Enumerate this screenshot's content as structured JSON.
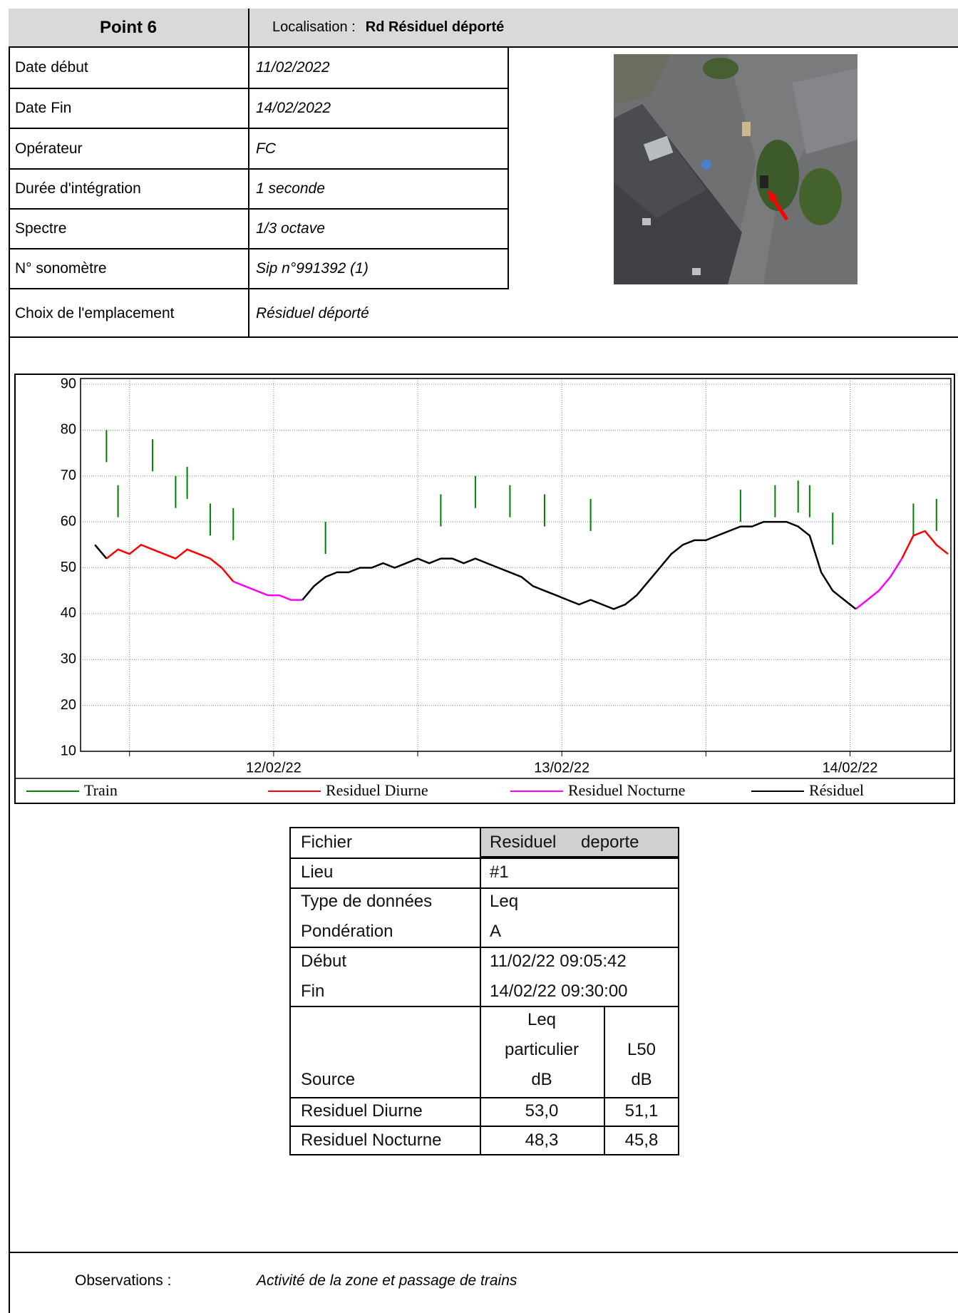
{
  "header": {
    "point": "Point 6",
    "location_label": "Localisation :",
    "location": "Rd Résiduel déporté"
  },
  "info": {
    "rows": [
      [
        "Date début",
        "11/02/2022"
      ],
      [
        "Date Fin",
        "14/02/2022"
      ],
      [
        "Opérateur",
        "FC"
      ],
      [
        "Durée d'intégration",
        "1 seconde"
      ],
      [
        "Spectre",
        "1/3 octave"
      ],
      [
        "N° sonomètre",
        "Sip n°991392 (1)"
      ],
      [
        "Choix de l'emplacement",
        "Résiduel déporté"
      ]
    ]
  },
  "chart_data": {
    "type": "line",
    "xlim": [
      0.33,
      3.35
    ],
    "xticks": [
      {
        "value": 1,
        "label": "12/02/22"
      },
      {
        "value": 2,
        "label": "13/02/22"
      },
      {
        "value": 3,
        "label": "14/02/22"
      }
    ],
    "xminor": [
      0.5,
      1.5,
      2.5
    ],
    "ylim": [
      10,
      90
    ],
    "yticks": [
      10,
      20,
      30,
      40,
      50,
      60,
      70,
      80,
      90
    ],
    "grid": true,
    "series": [
      {
        "name": "Train",
        "color": "#008000",
        "style": "spike",
        "x": [
          0.42,
          0.46,
          0.58,
          0.66,
          0.7,
          0.78,
          0.86,
          1.18,
          1.58,
          1.7,
          1.82,
          1.94,
          2.1,
          2.62,
          2.74,
          2.82,
          2.86,
          2.94,
          3.22,
          3.3
        ],
        "values": [
          80,
          68,
          78,
          70,
          72,
          64,
          63,
          60,
          66,
          70,
          68,
          66,
          65,
          67,
          68,
          69,
          68,
          62,
          64,
          65
        ]
      },
      {
        "name": "Residuel Diurne",
        "color": "#ff0000",
        "style": "line",
        "x": [
          0.42,
          0.46,
          0.5,
          0.54,
          0.58,
          0.62,
          0.66,
          0.7,
          0.74,
          0.78,
          0.82,
          0.86,
          2.0,
          3.18,
          3.22,
          3.26,
          3.3,
          3.34
        ],
        "values": [
          52,
          54,
          53,
          55,
          54,
          53,
          52,
          54,
          53,
          52,
          50,
          47,
          null,
          52,
          57,
          58,
          55,
          53
        ]
      },
      {
        "name": "Residuel Nocturne",
        "color": "#ff00ff",
        "style": "line",
        "x": [
          0.86,
          0.9,
          0.94,
          0.98,
          1.02,
          1.06,
          1.1,
          2.0,
          3.02,
          3.06,
          3.1,
          3.14,
          3.18
        ],
        "values": [
          47,
          46,
          45,
          44,
          44,
          43,
          43,
          null,
          41,
          43,
          45,
          48,
          52
        ]
      },
      {
        "name": "Résiduel",
        "color": "#000000",
        "style": "line",
        "x": [
          0.38,
          0.42,
          0.8,
          1.1,
          1.14,
          1.18,
          1.22,
          1.26,
          1.3,
          1.34,
          1.38,
          1.42,
          1.46,
          1.5,
          1.54,
          1.58,
          1.62,
          1.66,
          1.7,
          1.74,
          1.78,
          1.82,
          1.86,
          1.9,
          1.94,
          1.98,
          2.02,
          2.06,
          2.1,
          2.14,
          2.18,
          2.22,
          2.26,
          2.3,
          2.34,
          2.38,
          2.42,
          2.46,
          2.5,
          2.54,
          2.58,
          2.62,
          2.66,
          2.7,
          2.74,
          2.78,
          2.82,
          2.86,
          2.9,
          2.94,
          2.98,
          3.02
        ],
        "values": [
          55,
          52,
          null,
          43,
          46,
          48,
          49,
          49,
          50,
          50,
          51,
          50,
          51,
          52,
          51,
          52,
          52,
          51,
          52,
          51,
          50,
          49,
          48,
          46,
          45,
          44,
          43,
          42,
          43,
          42,
          41,
          42,
          44,
          47,
          50,
          53,
          55,
          56,
          56,
          57,
          58,
          59,
          59,
          60,
          60,
          60,
          59,
          57,
          49,
          45,
          43,
          41
        ]
      }
    ]
  },
  "summary_table": {
    "rows": [
      [
        "Fichier",
        "Residuel deporte"
      ],
      [
        "Lieu",
        "#1"
      ],
      [
        "Type de données",
        "Leq"
      ],
      [
        "Pondération",
        "A"
      ],
      [
        "Début",
        "11/02/22 09:05:42"
      ],
      [
        "Fin",
        "14/02/22 09:30:00"
      ]
    ],
    "header": {
      "source": "Source",
      "leq": [
        "Leq",
        "particulier",
        "dB"
      ],
      "l50": [
        "L50",
        "dB"
      ]
    },
    "data": [
      [
        "Residuel Diurne",
        "53,0",
        "51,1"
      ],
      [
        "Residuel Nocturne",
        "48,3",
        "45,8"
      ]
    ]
  },
  "observations": {
    "label": "Observations :",
    "text": "Activité de la zone et passage de trains"
  }
}
